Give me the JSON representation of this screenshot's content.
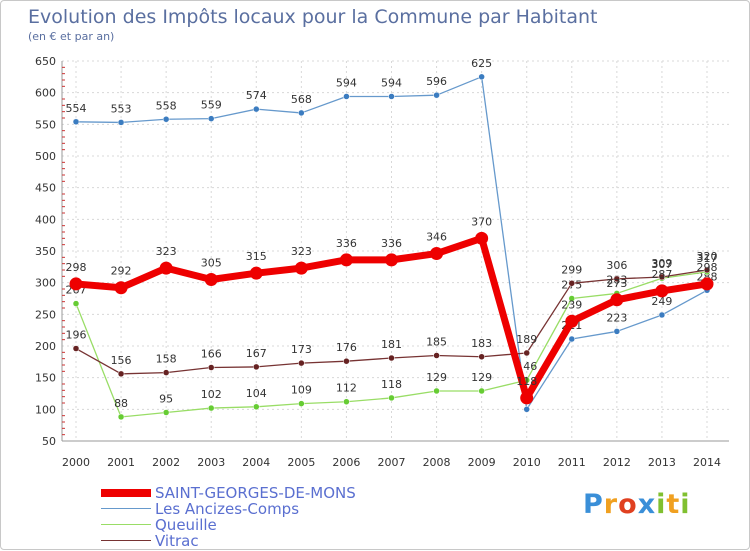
{
  "chart_data": {
    "type": "line",
    "title": "Evolution des Impôts locaux pour la Commune par Habitant",
    "subtitle": "(en € et par an)",
    "xlabel": "",
    "ylabel": "",
    "ylim": [
      50,
      650
    ],
    "yticks": [
      50,
      100,
      150,
      200,
      250,
      300,
      350,
      400,
      450,
      500,
      550,
      600,
      650
    ],
    "x": [
      "2000",
      "2001",
      "2002",
      "2003",
      "2004",
      "2005",
      "2006",
      "2007",
      "2008",
      "2009",
      "2010",
      "2011",
      "2012",
      "2013",
      "2014"
    ],
    "series": [
      {
        "name": "Les Ancizes-Comps",
        "color": "#6699cc",
        "point_color": "#3b7cc0",
        "values": [
          554,
          553,
          558,
          559,
          574,
          568,
          594,
          594,
          596,
          625,
          100,
          211,
          223,
          249,
          288
        ],
        "labels": [
          "554",
          "553",
          "558",
          "559",
          "574",
          "568",
          "594",
          "594",
          "596",
          "625",
          "",
          "211",
          "223",
          "249",
          "288"
        ]
      },
      {
        "name": "Queuille",
        "color": "#99dd66",
        "point_color": "#66cc33",
        "values": [
          267,
          88,
          95,
          102,
          104,
          109,
          112,
          118,
          129,
          129,
          146,
          275,
          283,
          307,
          317
        ],
        "labels": [
          "267",
          "88",
          "95",
          "102",
          "104",
          "109",
          "112",
          "118",
          "129",
          "129",
          "146",
          "275",
          "283",
          "307",
          "317"
        ]
      },
      {
        "name": "Vitrac",
        "color": "#773333",
        "point_color": "#662222",
        "values": [
          196,
          156,
          158,
          166,
          167,
          173,
          176,
          181,
          185,
          183,
          189,
          299,
          306,
          309,
          320
        ],
        "labels": [
          "196",
          "156",
          "158",
          "166",
          "167",
          "173",
          "176",
          "181",
          "185",
          "183",
          "189",
          "299",
          "306",
          "309",
          "320"
        ]
      },
      {
        "name": "SAINT-GEORGES-DE-MONS",
        "color": "#ee0000",
        "point_color": "#ee0000",
        "bold": true,
        "values": [
          298,
          292,
          323,
          305,
          315,
          323,
          336,
          336,
          346,
          370,
          118,
          239,
          273,
          287,
          298
        ],
        "labels": [
          "298",
          "292",
          "323",
          "305",
          "315",
          "323",
          "336",
          "336",
          "346",
          "370",
          "118",
          "239",
          "273",
          "287",
          "298"
        ]
      }
    ],
    "legend": [
      {
        "name": "SAINT-GEORGES-DE-MONS",
        "color": "#ee0000",
        "bold": true
      },
      {
        "name": "Les Ancizes-Comps",
        "color": "#6699cc",
        "bold": false
      },
      {
        "name": "Queuille",
        "color": "#99dd66",
        "bold": false
      },
      {
        "name": "Vitrac",
        "color": "#773333",
        "bold": false
      }
    ]
  },
  "logo": {
    "letters": [
      "P",
      "r",
      "o",
      "x",
      "i",
      "t",
      "i"
    ],
    "colors": [
      "#3a8fd8",
      "#f0a020",
      "#e04020",
      "#3a8fd8",
      "#80c030",
      "#f0a020",
      "#80c030"
    ]
  }
}
